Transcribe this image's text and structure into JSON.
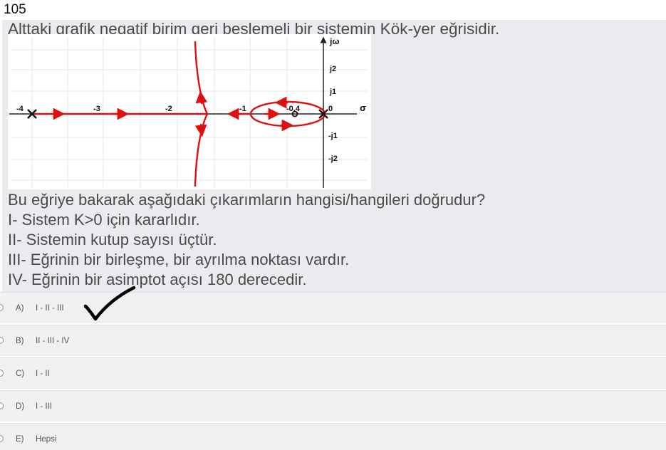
{
  "question_number": "105",
  "intro": "Alttaki grafik negatif birim geri beslemeli bir sistemin Kök-yer eğrisidir.",
  "plot": {
    "y_axis_label": "jω",
    "x_axis_label": "σ",
    "x_ticks": [
      "-4",
      "-3",
      "-2",
      "-1",
      "-0,4",
      "0"
    ],
    "y_ticks": [
      "j2",
      "j1",
      "-j1",
      "-j2"
    ],
    "colors": {
      "locus": "#dd1111",
      "grid": "#e4e4e4",
      "axis": "#222222"
    }
  },
  "prompt": "Bu eğriye bakarak aşağıdaki çıkarımların hangisi/hangileri doğrudur?",
  "statements": [
    "I-  Sistem K>0 için kararlıdır.",
    "II- Sistemin kutup sayısı üçtür.",
    "III- Eğrinin bir birleşme, bir ayrılma noktası vardır.",
    "IV- Eğrinin bir asimptot açısı 180 derecedir."
  ],
  "options": [
    {
      "letter": "A)",
      "text": "I - II - III",
      "checked": true
    },
    {
      "letter": "B)",
      "text": "II - III - IV"
    },
    {
      "letter": "C)",
      "text": "I - II"
    },
    {
      "letter": "D)",
      "text": "I - III"
    },
    {
      "letter": "E)",
      "text": "Hepsi"
    }
  ]
}
